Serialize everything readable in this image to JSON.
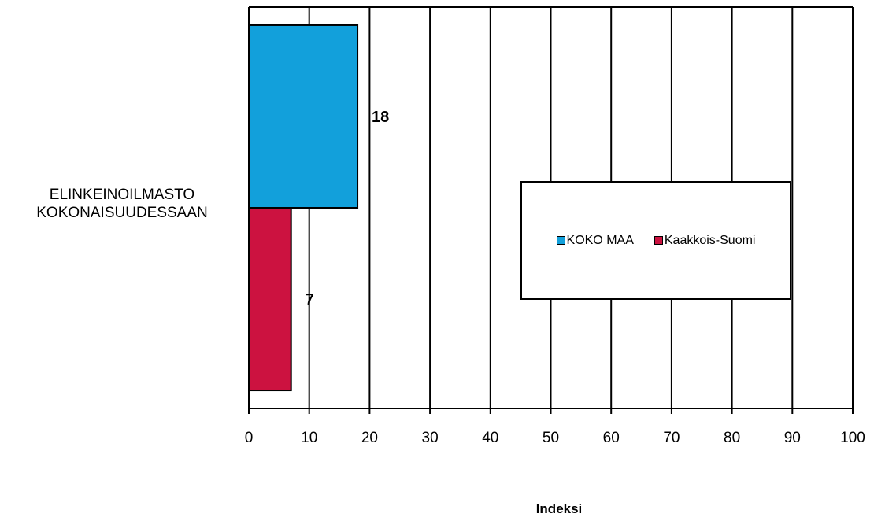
{
  "chart_data": {
    "type": "bar",
    "orientation": "horizontal",
    "categories": [
      "ELINKEINOILMASTO KOKONAISUUDESSAAN"
    ],
    "category_lines": [
      "ELINKEINOILMASTO",
      "KOKONAISUUDESSAAN"
    ],
    "series": [
      {
        "name": "KOKO MAA",
        "values": [
          18
        ],
        "color": "#12a0db"
      },
      {
        "name": "Kaakkois-Suomi",
        "values": [
          7
        ],
        "color": "#cc1240"
      }
    ],
    "xlabel": "Indeksi",
    "xlim": [
      0,
      100
    ],
    "xticks": [
      0,
      10,
      20,
      30,
      40,
      50,
      60,
      70,
      80,
      90,
      100
    ],
    "grid": true,
    "legend_position": "inside-right",
    "data_labels": [
      "18",
      "7"
    ]
  }
}
